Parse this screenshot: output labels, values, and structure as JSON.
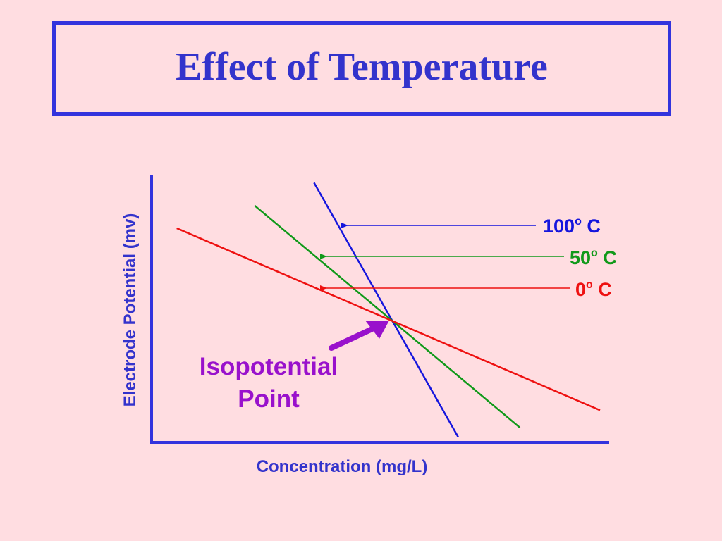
{
  "slide": {
    "title": "Effect of Temperature"
  },
  "chart_data": {
    "type": "line",
    "title": "",
    "xlabel": "Concentration (mg/L)",
    "ylabel": "Electrode Potential (mv)",
    "xlim": [
      0,
      10
    ],
    "ylim": [
      0,
      10
    ],
    "grid": false,
    "series": [
      {
        "name": "100",
        "unit_sup": "o",
        "unit": " C",
        "color": "#1515DD",
        "x": [
          3.55,
          6.7
        ],
        "y": [
          9.7,
          0.2
        ]
      },
      {
        "name": "50",
        "unit_sup": "o",
        "unit": " C",
        "color": "#11991A",
        "x": [
          2.25,
          8.05
        ],
        "y": [
          8.85,
          0.55
        ]
      },
      {
        "name": "0",
        "unit_sup": "o",
        "unit": " C",
        "color": "#EE1111",
        "x": [
          0.55,
          9.8
        ],
        "y": [
          8.0,
          1.2
        ]
      }
    ],
    "annotation": {
      "lines": [
        "Isopotential",
        "Point"
      ],
      "color": "#9911CC",
      "target": {
        "x": 5.3,
        "y": 4.4
      }
    }
  }
}
